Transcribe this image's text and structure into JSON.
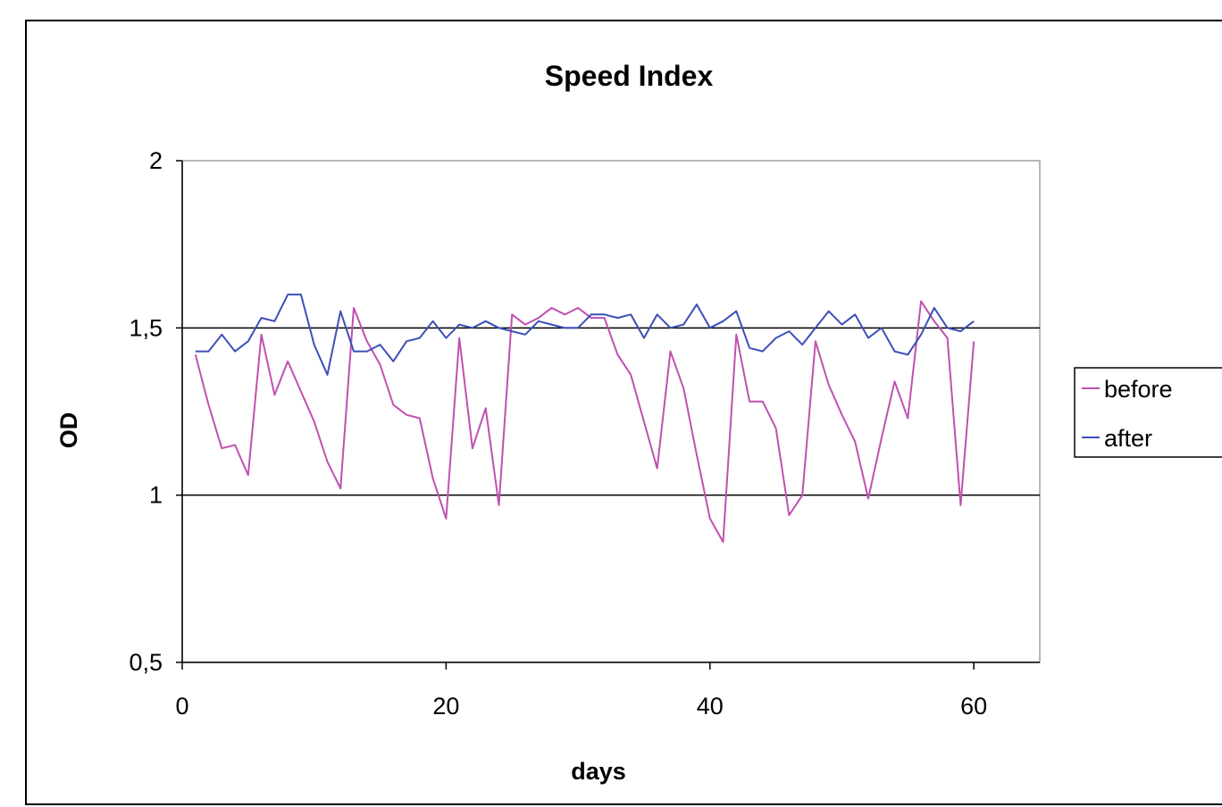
{
  "chart_data": {
    "type": "line",
    "title": "Speed Index",
    "xlabel": "days",
    "ylabel": "OD",
    "xlim": [
      0,
      65
    ],
    "ylim": [
      0.5,
      2
    ],
    "x_ticks": [
      0,
      20,
      40,
      60
    ],
    "x_tick_labels": [
      "0",
      "20",
      "40",
      "60"
    ],
    "y_ticks": [
      0.5,
      1,
      1.5,
      2
    ],
    "y_tick_labels": [
      "0,5",
      "1",
      "1,5",
      "2"
    ],
    "gridlines_y": [
      1,
      1.5
    ],
    "legend_position": "right",
    "x": [
      1,
      2,
      3,
      4,
      5,
      6,
      7,
      8,
      9,
      10,
      11,
      12,
      13,
      14,
      15,
      16,
      17,
      18,
      19,
      20,
      21,
      22,
      23,
      24,
      25,
      26,
      27,
      28,
      29,
      30,
      31,
      32,
      33,
      34,
      35,
      36,
      37,
      38,
      39,
      40,
      41,
      42,
      43,
      44,
      45,
      46,
      47,
      48,
      49,
      50,
      51,
      52,
      53,
      54,
      55,
      56,
      57,
      58,
      59,
      60
    ],
    "series": [
      {
        "name": "before",
        "color": "#c050b0",
        "values": [
          1.42,
          1.27,
          1.14,
          1.15,
          1.06,
          1.48,
          1.3,
          1.4,
          1.31,
          1.22,
          1.1,
          1.02,
          1.56,
          1.46,
          1.39,
          1.27,
          1.24,
          1.23,
          1.05,
          0.93,
          1.47,
          1.14,
          1.26,
          0.97,
          1.54,
          1.51,
          1.53,
          1.56,
          1.54,
          1.56,
          1.53,
          1.53,
          1.42,
          1.36,
          1.22,
          1.08,
          1.43,
          1.32,
          1.12,
          0.93,
          0.86,
          1.48,
          1.28,
          1.28,
          1.2,
          0.94,
          1.0,
          1.46,
          1.33,
          1.24,
          1.16,
          0.99,
          1.17,
          1.34,
          1.23,
          1.58,
          1.52,
          1.47,
          0.97,
          1.46
        ]
      },
      {
        "name": "after",
        "color": "#3d4fb8",
        "values": [
          1.43,
          1.43,
          1.48,
          1.43,
          1.46,
          1.53,
          1.52,
          1.6,
          1.6,
          1.45,
          1.36,
          1.55,
          1.43,
          1.43,
          1.45,
          1.4,
          1.46,
          1.47,
          1.52,
          1.47,
          1.51,
          1.5,
          1.52,
          1.5,
          1.49,
          1.48,
          1.52,
          1.51,
          1.5,
          1.5,
          1.54,
          1.54,
          1.53,
          1.54,
          1.47,
          1.54,
          1.5,
          1.51,
          1.57,
          1.5,
          1.52,
          1.55,
          1.44,
          1.43,
          1.47,
          1.49,
          1.45,
          1.5,
          1.55,
          1.51,
          1.54,
          1.47,
          1.5,
          1.43,
          1.42,
          1.48,
          1.56,
          1.5,
          1.49,
          1.52
        ]
      }
    ]
  }
}
